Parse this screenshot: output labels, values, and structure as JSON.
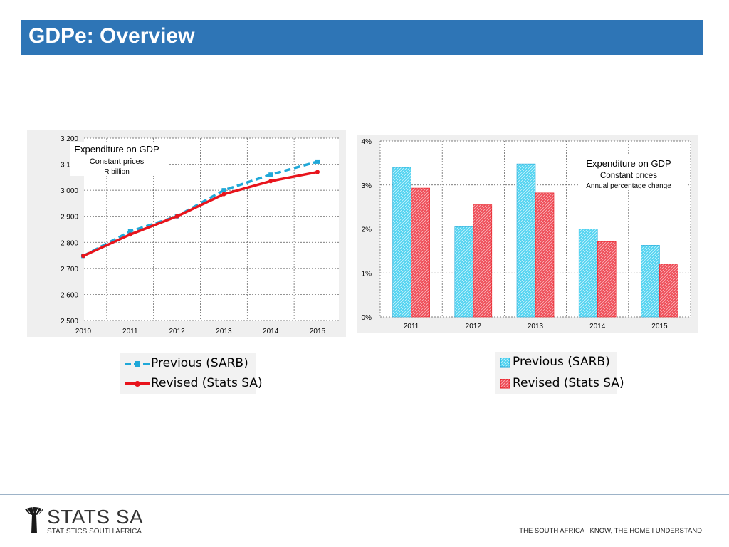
{
  "header": {
    "title": "GDPe: Overview"
  },
  "chart_data": [
    {
      "type": "line",
      "title": "Expenditure on GDP",
      "subtitle": [
        "Constant prices",
        "R billion"
      ],
      "x": [
        "2010",
        "2011",
        "2012",
        "2013",
        "2014",
        "2015"
      ],
      "ylim": [
        2500,
        3200
      ],
      "yticks": [
        2500,
        2600,
        2700,
        2800,
        2900,
        3000,
        3100,
        3200
      ],
      "ytick_labels": [
        "2 500",
        "2 600",
        "2 700",
        "2 800",
        "2 900",
        "3 000",
        "3 100",
        "3 200"
      ],
      "grid": true,
      "series": [
        {
          "name": "Previous (SARB)",
          "color": "#1fa8d8",
          "style": "dashed",
          "values": [
            2748,
            2842,
            2900,
            3000,
            3060,
            3110
          ]
        },
        {
          "name": "Revised (Stats SA)",
          "color": "#e8141c",
          "style": "solid",
          "values": [
            2748,
            2830,
            2900,
            2985,
            3035,
            3070
          ]
        }
      ],
      "legend": {
        "placement": "below",
        "items": [
          "Previous (SARB)",
          "Revised (Stats SA)"
        ]
      }
    },
    {
      "type": "bar",
      "title": "Expenditure on GDP",
      "subtitle": [
        "Constant prices",
        "Annual percentage change"
      ],
      "categories": [
        "2011",
        "2012",
        "2013",
        "2014",
        "2015"
      ],
      "ylim": [
        0,
        4
      ],
      "yticks": [
        0,
        1,
        2,
        3,
        4
      ],
      "ytick_labels": [
        "0%",
        "1%",
        "2%",
        "3%",
        "4%"
      ],
      "grid": true,
      "series": [
        {
          "name": "Previous (SARB)",
          "color": "#4dd2f0",
          "values": [
            3.4,
            2.05,
            3.48,
            2.0,
            1.63
          ]
        },
        {
          "name": "Revised (Stats SA)",
          "color": "#ee4a55",
          "values": [
            2.93,
            2.55,
            2.82,
            1.71,
            1.2
          ]
        }
      ],
      "legend": {
        "placement": "below",
        "items": [
          "Previous (SARB)",
          "Revised (Stats SA)"
        ]
      }
    }
  ],
  "footer": {
    "logo": "STATS SA",
    "logo_sub": "STATISTICS SOUTH AFRICA",
    "tagline": "THE SOUTH AFRICA I KNOW, THE HOME I UNDERSTAND",
    "logo_icon": "baobab-tree-icon"
  }
}
